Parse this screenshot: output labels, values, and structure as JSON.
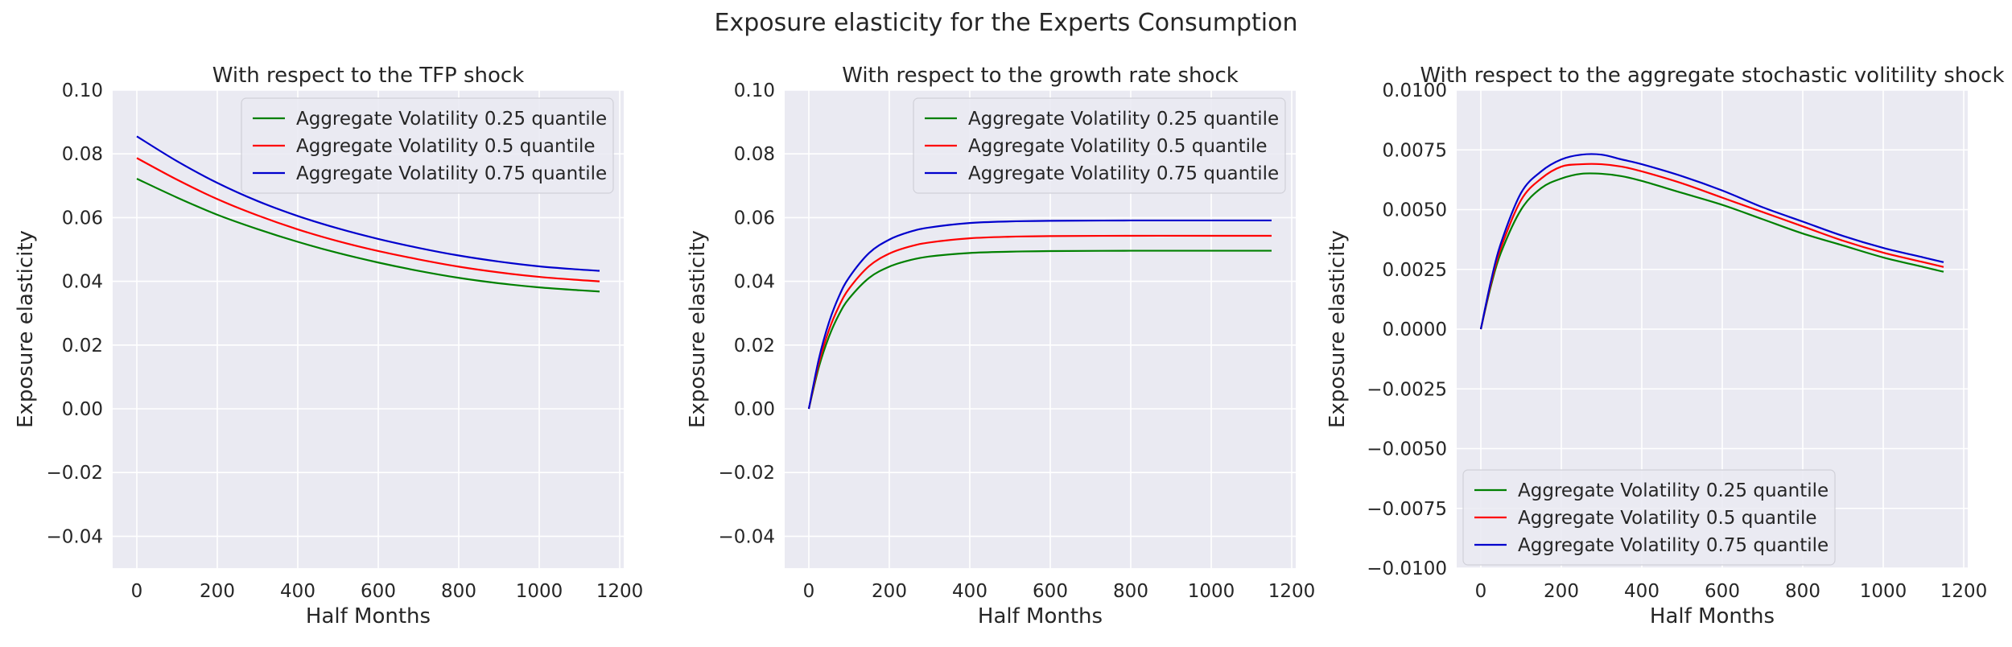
{
  "figure": {
    "title": "Exposure elasticity for the Experts Consumption"
  },
  "colors": {
    "background": "#eaeaf2",
    "grid": "#ffffff",
    "q25": "#008000",
    "q50": "#ff0000",
    "q75": "#0000cd"
  },
  "chart_data": [
    {
      "type": "line",
      "title": "With respect to the TFP shock",
      "xlabel": "Half Months",
      "ylabel": "Exposure elasticity",
      "xlim": [
        -60,
        1210
      ],
      "ylim": [
        -0.05,
        0.1
      ],
      "xticks": [
        0,
        200,
        400,
        600,
        800,
        1000,
        1200
      ],
      "xtick_labels": [
        "0",
        "200",
        "400",
        "600",
        "800",
        "1000",
        "1200"
      ],
      "yticks": [
        -0.04,
        -0.02,
        0.0,
        0.02,
        0.04,
        0.06,
        0.08,
        0.1
      ],
      "ytick_labels": [
        "−0.04",
        "−0.02",
        "0.00",
        "0.02",
        "0.04",
        "0.06",
        "0.08",
        "0.10"
      ],
      "grid": true,
      "legend_position": "top-right",
      "x": [
        0,
        100,
        200,
        300,
        400,
        500,
        600,
        700,
        800,
        900,
        1000,
        1100,
        1150
      ],
      "series": [
        {
          "name": "Aggregate Volatility 0.25 quantile",
          "color_key": "q25",
          "values": [
            0.0722,
            0.0663,
            0.0609,
            0.0564,
            0.0524,
            0.0489,
            0.0459,
            0.0433,
            0.0411,
            0.0394,
            0.0381,
            0.0372,
            0.0368
          ]
        },
        {
          "name": "Aggregate Volatility 0.5 quantile",
          "color_key": "q50",
          "values": [
            0.0787,
            0.0719,
            0.0658,
            0.0607,
            0.0563,
            0.0526,
            0.0495,
            0.0469,
            0.0446,
            0.0428,
            0.0414,
            0.0404,
            0.04
          ]
        },
        {
          "name": "Aggregate Volatility 0.75 quantile",
          "color_key": "q75",
          "values": [
            0.0855,
            0.0777,
            0.0709,
            0.0652,
            0.0605,
            0.0566,
            0.0533,
            0.0505,
            0.0481,
            0.0462,
            0.0447,
            0.0437,
            0.0433
          ]
        }
      ]
    },
    {
      "type": "line",
      "title": "With respect to the growth rate shock",
      "xlabel": "Half Months",
      "ylabel": "Exposure elasticity",
      "xlim": [
        -60,
        1210
      ],
      "ylim": [
        -0.05,
        0.1
      ],
      "xticks": [
        0,
        200,
        400,
        600,
        800,
        1000,
        1200
      ],
      "xtick_labels": [
        "0",
        "200",
        "400",
        "600",
        "800",
        "1000",
        "1200"
      ],
      "yticks": [
        -0.04,
        -0.02,
        0.0,
        0.02,
        0.04,
        0.06,
        0.08,
        0.1
      ],
      "ytick_labels": [
        "−0.04",
        "−0.02",
        "0.00",
        "0.02",
        "0.04",
        "0.06",
        "0.08",
        "0.10"
      ],
      "grid": true,
      "legend_position": "top-right",
      "x": [
        0,
        25,
        50,
        75,
        100,
        150,
        200,
        250,
        300,
        400,
        500,
        600,
        800,
        1000,
        1150
      ],
      "series": [
        {
          "name": "Aggregate Volatility 0.25 quantile",
          "color_key": "q25",
          "values": [
            0.0,
            0.0131,
            0.0226,
            0.0296,
            0.0346,
            0.0411,
            0.0446,
            0.0466,
            0.0478,
            0.0489,
            0.0493,
            0.0495,
            0.0496,
            0.0496,
            0.0496
          ]
        },
        {
          "name": "Aggregate Volatility 0.5 quantile",
          "color_key": "q50",
          "values": [
            0.0,
            0.0143,
            0.0247,
            0.0322,
            0.0377,
            0.0448,
            0.0487,
            0.0509,
            0.0522,
            0.0535,
            0.054,
            0.0542,
            0.0543,
            0.0543,
            0.0543
          ]
        },
        {
          "name": "Aggregate Volatility 0.75 quantile",
          "color_key": "q75",
          "values": [
            0.0,
            0.0157,
            0.0271,
            0.0353,
            0.0412,
            0.0489,
            0.0531,
            0.0555,
            0.0569,
            0.0583,
            0.0588,
            0.059,
            0.0591,
            0.0591,
            0.0591
          ]
        }
      ]
    },
    {
      "type": "line",
      "title": "With respect to the aggregate stochastic volitility shock",
      "xlabel": "Half Months",
      "ylabel": "Exposure elasticity",
      "xlim": [
        -60,
        1210
      ],
      "ylim": [
        -0.01,
        0.01
      ],
      "xticks": [
        0,
        200,
        400,
        600,
        800,
        1000,
        1200
      ],
      "xtick_labels": [
        "0",
        "200",
        "400",
        "600",
        "800",
        "1000",
        "1200"
      ],
      "yticks": [
        -0.01,
        -0.0075,
        -0.005,
        -0.0025,
        0.0,
        0.0025,
        0.005,
        0.0075,
        0.01
      ],
      "ytick_labels": [
        "−0.0100",
        "−0.0075",
        "−0.0050",
        "−0.0025",
        "0.0000",
        "0.0025",
        "0.0050",
        "0.0075",
        "0.0100"
      ],
      "grid": true,
      "legend_position": "bottom-left",
      "x": [
        0,
        25,
        50,
        100,
        150,
        200,
        250,
        300,
        350,
        400,
        500,
        600,
        700,
        800,
        900,
        1000,
        1100,
        1150
      ],
      "series": [
        {
          "name": "Aggregate Volatility 0.25 quantile",
          "color_key": "q25",
          "values": [
            0.0,
            0.0018,
            0.0032,
            0.005,
            0.0059,
            0.0063,
            0.0065,
            0.0065,
            0.0064,
            0.0062,
            0.0057,
            0.0052,
            0.0046,
            0.004,
            0.0035,
            0.003,
            0.0026,
            0.0024
          ]
        },
        {
          "name": "Aggregate Volatility 0.5 quantile",
          "color_key": "q50",
          "values": [
            0.0,
            0.0019,
            0.0034,
            0.0054,
            0.0063,
            0.0068,
            0.0069,
            0.0069,
            0.0068,
            0.0066,
            0.0061,
            0.0055,
            0.0049,
            0.0043,
            0.0037,
            0.0032,
            0.0028,
            0.0026
          ]
        },
        {
          "name": "Aggregate Volatility 0.75 quantile",
          "color_key": "q75",
          "values": [
            0.0,
            0.002,
            0.0036,
            0.0057,
            0.0066,
            0.0071,
            0.0073,
            0.0073,
            0.0071,
            0.0069,
            0.0064,
            0.0058,
            0.0051,
            0.0045,
            0.0039,
            0.0034,
            0.003,
            0.0028
          ]
        }
      ]
    }
  ]
}
